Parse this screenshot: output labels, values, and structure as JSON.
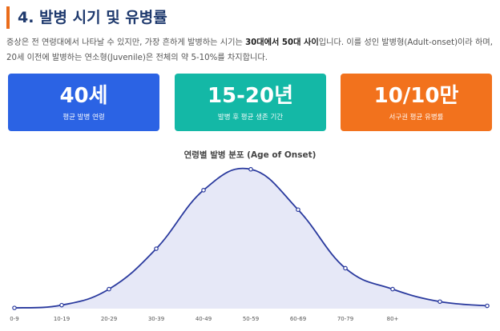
{
  "section": {
    "title": "4. 발병 시기 및 유병률",
    "paragraph_parts": [
      "증상은 전 연령대에서 나타날 수 있지만, 가장 흔하게 발병하는 시기는 ",
      "30대에서 50대 사이",
      "입니다. 이를 성인 발병형(Adult-onset)이라 하며, 20세 이전에 발병하는 연소형(Juvenile)은 전체의 약 5-10%를 차지합니다."
    ]
  },
  "stats": [
    {
      "value": "40세",
      "label": "평균 발병 연령",
      "color": "#2b63e4"
    },
    {
      "value": "15-20년",
      "label": "발병 후 평균 생존 기간",
      "color": "#14b8a6"
    },
    {
      "value": "10/10만",
      "label": "서구권 평균 유병률",
      "color": "#f2721d"
    }
  ],
  "chart_data": {
    "type": "area",
    "title": "연령별 발병 분포 (Age of Onset)",
    "categories": [
      "0-9",
      "10-19",
      "20-29",
      "30-39",
      "40-49",
      "50-59",
      "60-69",
      "70-79",
      "80+"
    ],
    "x": [
      0,
      1,
      2,
      3,
      4,
      5,
      6,
      7,
      8,
      9,
      10
    ],
    "values": [
      0.5,
      2.5,
      14,
      43,
      85,
      100,
      71,
      29,
      14,
      5,
      2
    ],
    "ylim": [
      0,
      105
    ],
    "line_color": "#2a3a9e",
    "fill_color": "#e6e8f7",
    "grid": false,
    "legend": "none"
  }
}
